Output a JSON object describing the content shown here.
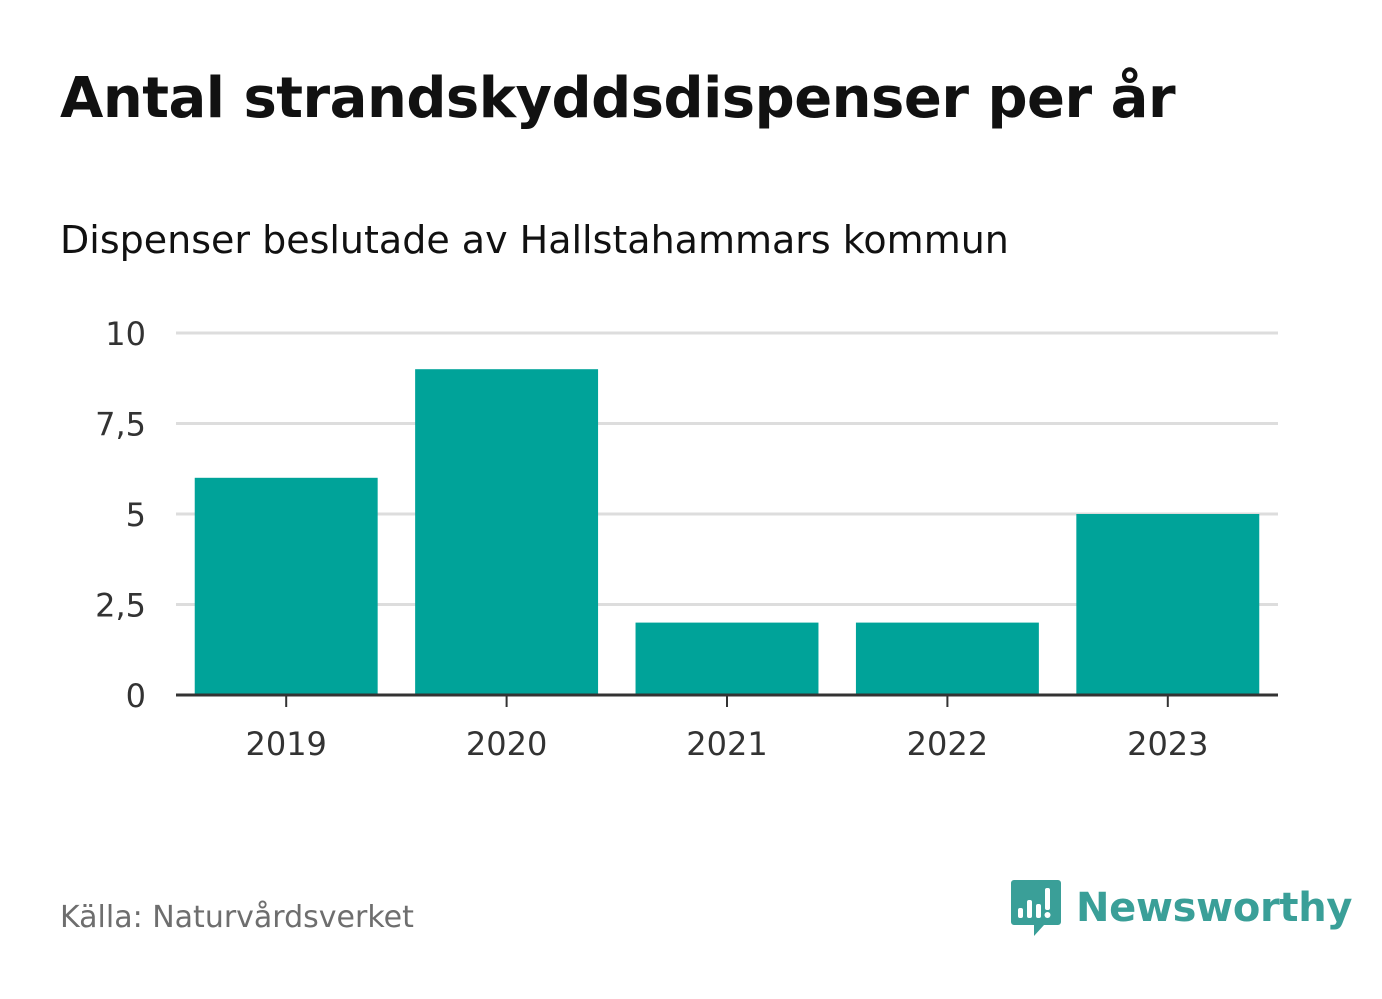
{
  "header": {
    "title": "Antal strandskyddsdispenser per år",
    "subtitle": "Dispenser beslutade av Hallstahammars kommun"
  },
  "footer": {
    "source": "Källa: Naturvårdsverket",
    "brand": "Newsworthy",
    "brand_icon": "bar-chart-speech-bubble-icon"
  },
  "colors": {
    "bar": "#00a399",
    "grid": "#dddddd",
    "axis": "#333333",
    "brand": "#3a9f98"
  },
  "chart_data": {
    "type": "bar",
    "title": "Antal strandskyddsdispenser per år",
    "subtitle": "Dispenser beslutade av Hallstahammars kommun",
    "categories": [
      "2019",
      "2020",
      "2021",
      "2022",
      "2023"
    ],
    "values": [
      6,
      9,
      2,
      2,
      5
    ],
    "ylim": [
      0,
      10
    ],
    "yticks": [
      0,
      2.5,
      5,
      7.5,
      10
    ],
    "ytick_labels": [
      "0",
      "2,5",
      "5",
      "7,5",
      "10"
    ],
    "xlabel": "",
    "ylabel": "",
    "grid": true
  }
}
